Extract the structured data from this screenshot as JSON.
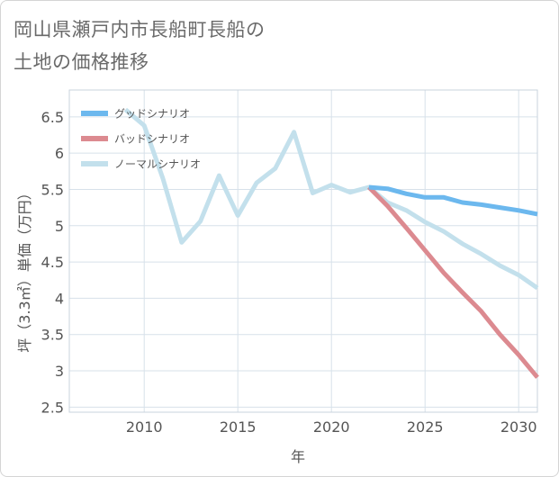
{
  "title_lines": [
    "岡山県瀬戸内市長船町長船の",
    "土地の価格推移"
  ],
  "chart_data": {
    "type": "line",
    "title": "岡山県瀬戸内市長船町長船の土地の価格推移",
    "xlabel": "年",
    "ylabel": "坪（3.3㎡）単価（万円）",
    "xlim": [
      2006,
      2031
    ],
    "ylim": [
      2.43,
      6.87
    ],
    "xticks": [
      2010,
      2015,
      2020,
      2025,
      2030
    ],
    "yticks": [
      2.5,
      3,
      3.5,
      4,
      4.5,
      5,
      5.5,
      6,
      6.5
    ],
    "grid": true,
    "legend_position": "top-left",
    "series": [
      {
        "name": "グッドシナリオ",
        "color": "#6cb8ee",
        "x": [
          2022,
          2023,
          2024,
          2025,
          2026,
          2027,
          2028,
          2029,
          2030,
          2031
        ],
        "values": [
          5.53,
          5.51,
          5.44,
          5.39,
          5.39,
          5.32,
          5.29,
          5.25,
          5.21,
          5.16
        ]
      },
      {
        "name": "バッドシナリオ",
        "color": "#dc8a90",
        "x": [
          2022,
          2023,
          2024,
          2025,
          2026,
          2027,
          2028,
          2029,
          2030,
          2031
        ],
        "values": [
          5.53,
          5.27,
          4.97,
          4.66,
          4.35,
          4.08,
          3.82,
          3.5,
          3.22,
          2.91
        ]
      },
      {
        "name": "ノーマルシナリオ",
        "color": "#c3e0ec",
        "x": [
          2009,
          2010,
          2011,
          2012,
          2013,
          2014,
          2015,
          2016,
          2017,
          2018,
          2019,
          2020,
          2021,
          2022,
          2023,
          2024,
          2025,
          2026,
          2027,
          2028,
          2029,
          2030,
          2031
        ],
        "values": [
          6.6,
          6.38,
          5.65,
          4.77,
          5.06,
          5.69,
          5.14,
          5.59,
          5.79,
          6.29,
          5.45,
          5.56,
          5.46,
          5.53,
          5.32,
          5.21,
          5.05,
          4.92,
          4.75,
          4.61,
          4.45,
          4.32,
          4.14
        ]
      }
    ]
  }
}
